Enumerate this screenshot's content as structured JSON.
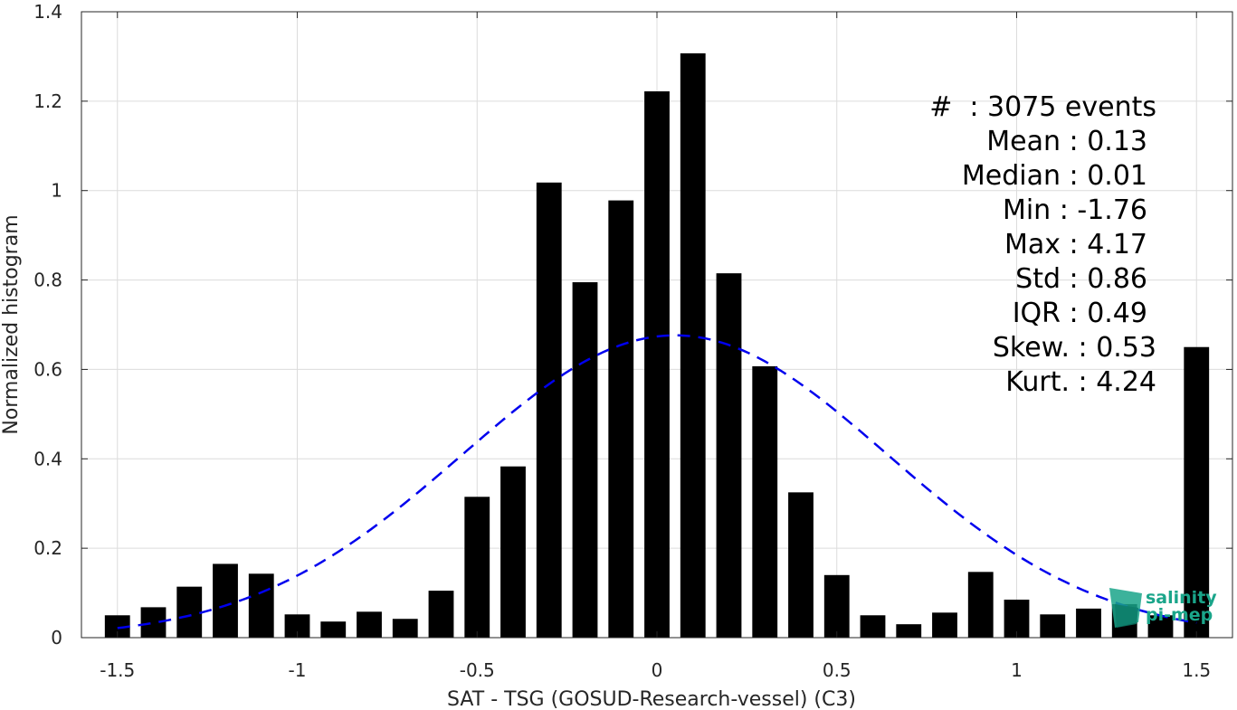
{
  "chart_data": {
    "type": "bar",
    "xlabel": "SAT - TSG (GOSUD-Research-vessel) (C3)",
    "ylabel": "Normalized histogram",
    "xlim": [
      -1.6,
      1.6
    ],
    "ylim": [
      0,
      1.4
    ],
    "grid": true,
    "x_ticks": [
      "-1.5",
      "-1",
      "-0.5",
      "0",
      "0.5",
      "1",
      "1.5"
    ],
    "y_ticks": [
      "0",
      "0.2",
      "0.4",
      "0.6",
      "0.8",
      "1",
      "1.2",
      "1.4"
    ],
    "bars": {
      "x": [
        -1.5,
        -1.4,
        -1.3,
        -1.2,
        -1.1,
        -1.0,
        -0.9,
        -0.8,
        -0.7,
        -0.6,
        -0.5,
        -0.4,
        -0.3,
        -0.2,
        -0.1,
        0.0,
        0.1,
        0.2,
        0.3,
        0.4,
        0.5,
        0.6,
        0.7,
        0.8,
        0.9,
        1.0,
        1.1,
        1.2,
        1.3,
        1.4,
        1.5
      ],
      "values": [
        0.05,
        0.068,
        0.114,
        0.165,
        0.143,
        0.052,
        0.036,
        0.058,
        0.042,
        0.105,
        0.315,
        0.383,
        1.018,
        0.795,
        0.978,
        1.222,
        1.307,
        0.815,
        0.607,
        0.325,
        0.14,
        0.05,
        0.03,
        0.056,
        0.147,
        0.085,
        0.052,
        0.065,
        0.075,
        0.05,
        0.65
      ],
      "color": "#000000"
    },
    "fit_curve": {
      "style": "dashed",
      "color": "#0000ee",
      "mean": 0.05,
      "std": 0.59,
      "x_range": [
        -1.5,
        1.5
      ]
    },
    "stats": [
      "#  : 3075 events",
      "Mean : 0.13",
      "Median : 0.01",
      "Min : -1.76",
      "Max : 4.17",
      "Std : 0.86",
      "IQR : 0.49",
      "Skew. : 0.53",
      "Kurt. : 4.24"
    ]
  },
  "logo": {
    "line1": "salinity",
    "line2": "pi-mep",
    "accent": "#1aa58a"
  }
}
